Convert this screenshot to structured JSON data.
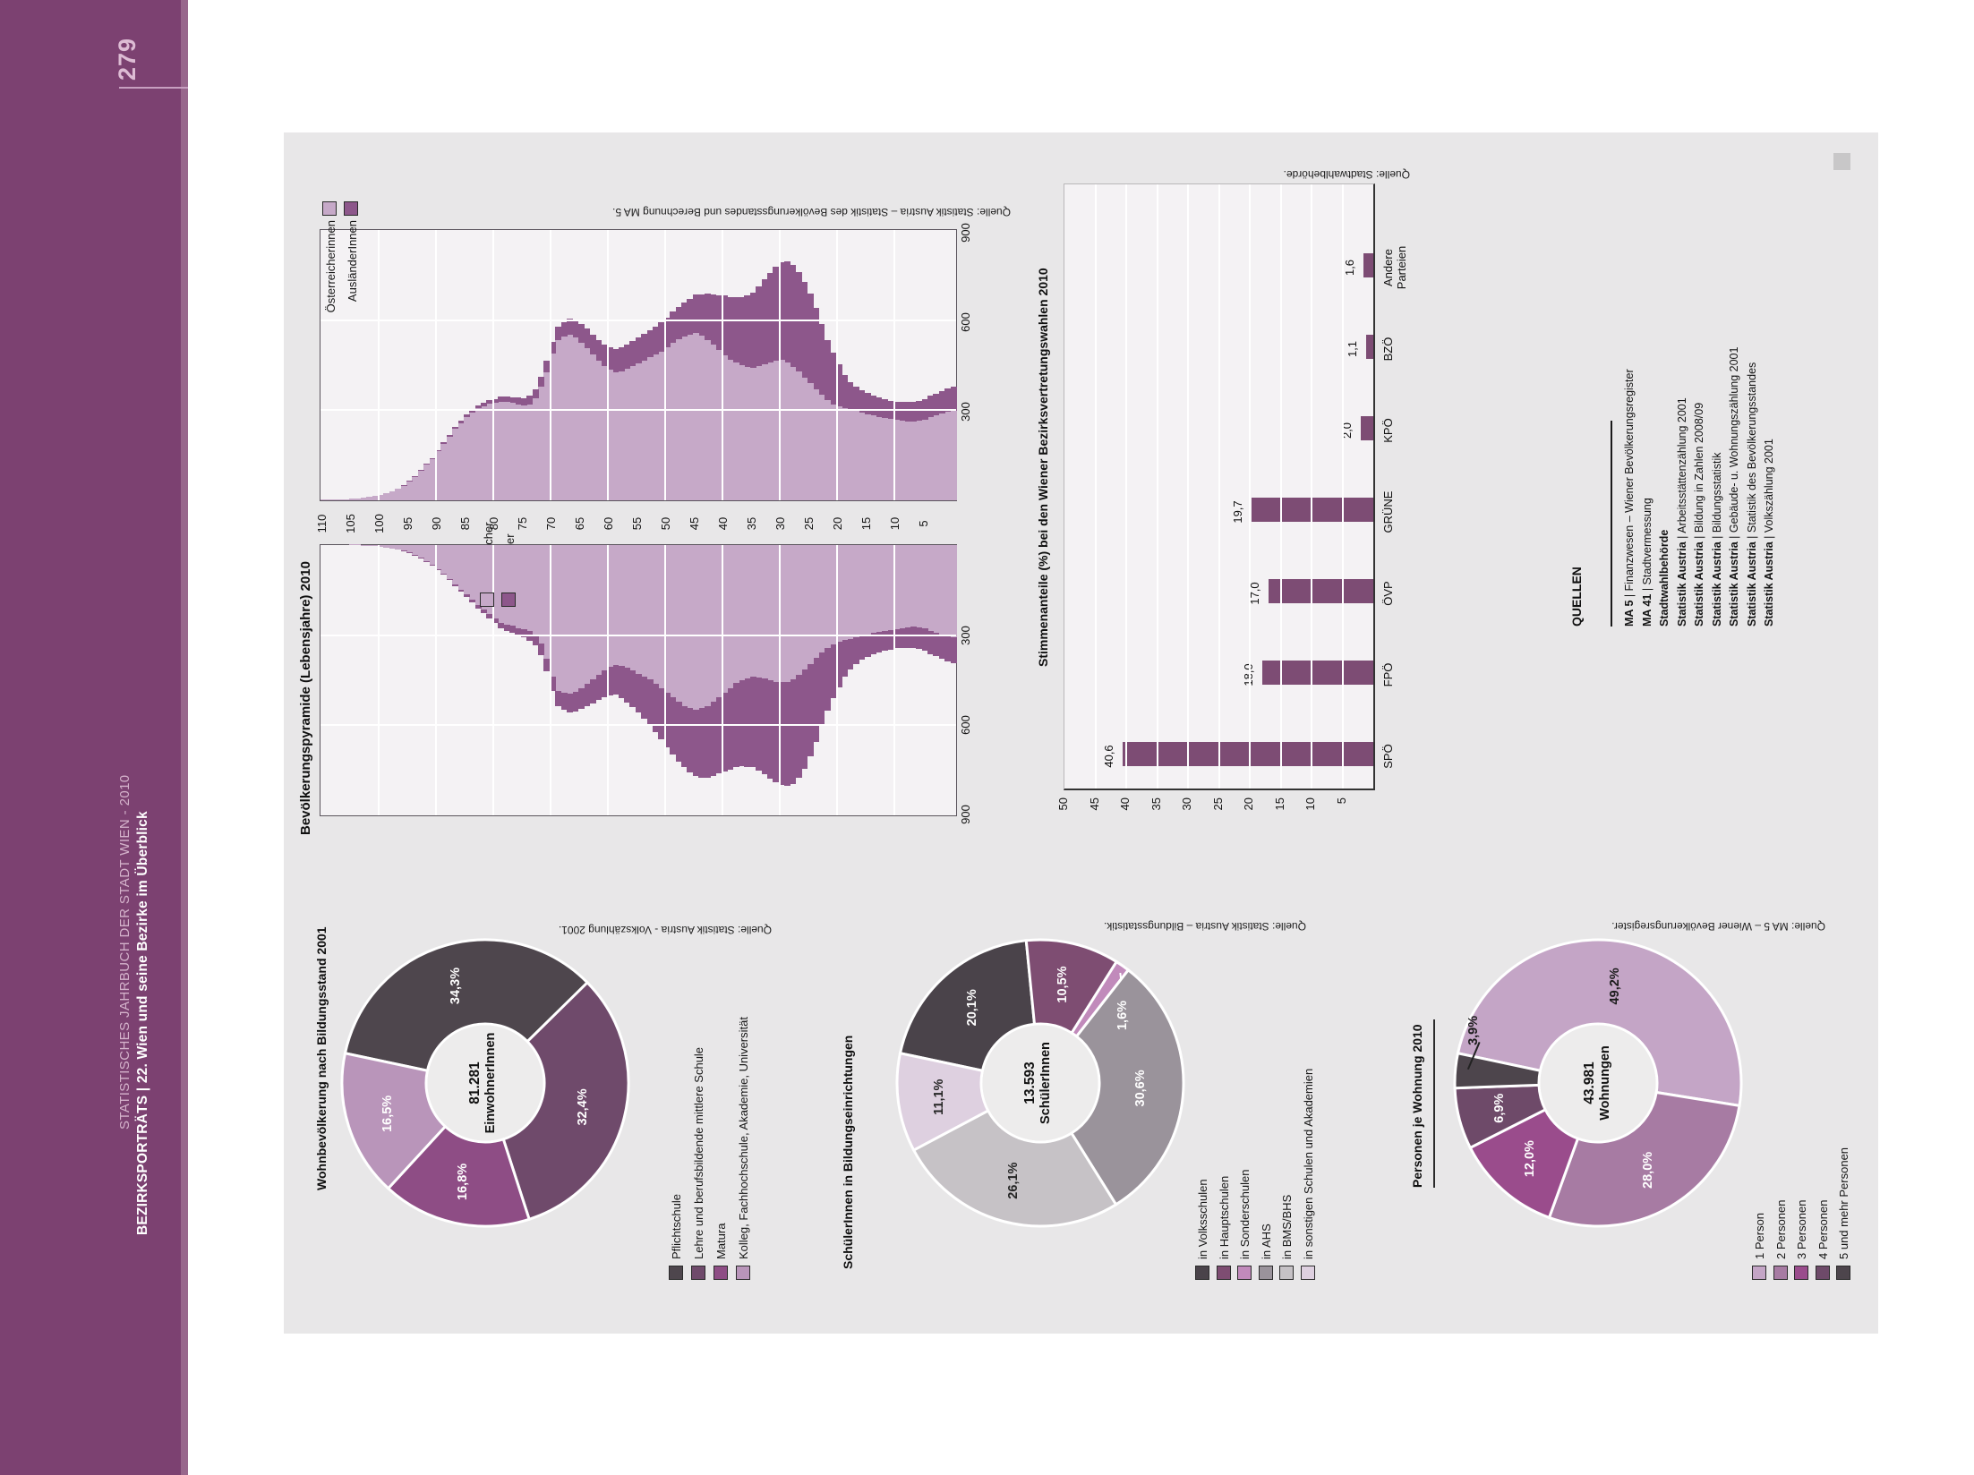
{
  "page": {
    "number": "279",
    "sidebar": {
      "series_title": "STATISTISCHES JAHRBUCH DER STADT WIEN - 2010",
      "chapter_title": "BEZIRKSPORTRÄTS | 22. Wien und seine Bezirke im Überblick",
      "color": "#7c4171"
    },
    "sources_box": {
      "heading": "QUELLEN",
      "items": [
        {
          "bold": "MA 5",
          "rest": " | Finanzwesen – Wiener Bevölkerungsregister"
        },
        {
          "bold": "MA 41",
          "rest": " | Stadtvermessung"
        },
        {
          "bold": "Stadtwahlbehörde",
          "rest": ""
        },
        {
          "bold": "Statistik Austria",
          "rest": " | Arbeitsstättenzählung 2001"
        },
        {
          "bold": "Statistik Austria",
          "rest": " | Bildung in Zahlen 2008/09"
        },
        {
          "bold": "Statistik Austria",
          "rest": " | Bildungsstatistik"
        },
        {
          "bold": "Statistik Austria",
          "rest": " | Gebäude- u. Wohnungszählung 2001"
        },
        {
          "bold": "Statistik Austria",
          "rest": " | Statistik des Bevölkerungsstandes"
        },
        {
          "bold": "Statistik Austria",
          "rest": " | Volkszählung 2001"
        }
      ]
    }
  },
  "chart_data": [
    {
      "type": "bar",
      "subtype": "population-pyramid",
      "title": "Bevölkerungspyramide (Lebensjahre) 2010",
      "source": "Quelle: Statistik Austria – Statistik des Bevölkerungsstandes und Berechnung MA 5.",
      "age_axis": {
        "min": 0,
        "max": 110,
        "tick_step": 5
      },
      "value_axis": {
        "ticks": [
          300,
          600,
          900
        ],
        "max": 906
      },
      "legend_female": [
        "Österreicherinnen",
        "AusländerInnen"
      ],
      "legend_male": [
        "Österreicher",
        "Ausländer"
      ],
      "color_national": "#c6a9c8",
      "color_foreign": "#8d578b",
      "series": [
        {
          "name": "Österreicherinnen",
          "values": [
            300,
            296,
            290,
            284,
            278,
            270,
            266,
            264,
            265,
            268,
            271,
            274,
            277,
            280,
            284,
            289,
            294,
            299,
            304,
            308,
            314,
            322,
            336,
            354,
            372,
            392,
            412,
            432,
            448,
            462,
            470,
            469,
            463,
            456,
            449,
            443,
            446,
            452,
            461,
            471,
            487,
            504,
            521,
            538,
            551,
            561,
            556,
            549,
            539,
            528,
            514,
            499,
            489,
            479,
            469,
            459,
            449,
            440,
            433,
            429,
            438,
            451,
            469,
            489,
            511,
            529,
            546,
            556,
            549,
            538,
            492,
            430,
            381,
            341,
            322,
            317,
            321,
            326,
            331,
            331,
            327,
            323,
            315,
            309,
            294,
            279,
            259,
            239,
            214,
            189,
            164,
            139,
            119,
            99,
            79,
            64,
            49,
            39,
            29,
            24,
            19,
            15,
            12,
            9,
            7,
            5,
            4,
            3,
            2,
            1,
            1
          ]
        },
        {
          "name": "AusländerInnen",
          "values": [
            80,
            78,
            76,
            74,
            72,
            70,
            68,
            66,
            64,
            62,
            60,
            60,
            62,
            64,
            68,
            71,
            75,
            81,
            92,
            112,
            142,
            172,
            202,
            237,
            272,
            301,
            321,
            333,
            341,
            338,
            329,
            314,
            299,
            284,
            269,
            254,
            240,
            229,
            219,
            209,
            199,
            184,
            169,
            154,
            139,
            129,
            119,
            114,
            109,
            104,
            99,
            97,
            94,
            91,
            89,
            87,
            84,
            81,
            79,
            77,
            74,
            71,
            69,
            67,
            64,
            61,
            59,
            54,
            49,
            44,
            39,
            37,
            34,
            31,
            29,
            26,
            23,
            20,
            18,
            16,
            13,
            12,
            11,
            10,
            9,
            8,
            7,
            6,
            5,
            5,
            4,
            3,
            2,
            2,
            1,
            1,
            1,
            0,
            0,
            0,
            0,
            0,
            0,
            0,
            0,
            0,
            0,
            0,
            0,
            0,
            0
          ]
        },
        {
          "name": "Österreicher",
          "values": [
            310,
            306,
            300,
            294,
            288,
            280,
            276,
            274,
            275,
            278,
            281,
            284,
            287,
            290,
            294,
            299,
            304,
            309,
            314,
            318,
            324,
            332,
            344,
            360,
            378,
            398,
            418,
            436,
            450,
            458,
            460,
            458,
            453,
            448,
            443,
            441,
            446,
            453,
            463,
            479,
            494,
            509,
            524,
            539,
            547,
            551,
            546,
            539,
            526,
            511,
            496,
            481,
            466,
            451,
            441,
            431,
            421,
            411,
            405,
            401,
            409,
            419,
            434,
            449,
            464,
            479,
            491,
            499,
            495,
            489,
            441,
            381,
            331,
            301,
            289,
            281,
            278,
            271,
            266,
            261,
            246,
            231,
            216,
            201,
            183,
            166,
            149,
            131,
            113,
            96,
            81,
            66,
            54,
            43,
            34,
            26,
            20,
            15,
            11,
            8,
            6,
            4,
            3,
            2,
            1,
            1,
            0,
            0,
            0,
            0,
            0
          ]
        },
        {
          "name": "Ausländer",
          "values": [
            85,
            83,
            81,
            79,
            77,
            75,
            73,
            71,
            69,
            67,
            65,
            66,
            68,
            70,
            73,
            76,
            81,
            89,
            102,
            124,
            152,
            182,
            212,
            247,
            282,
            311,
            331,
            343,
            351,
            349,
            344,
            337,
            329,
            321,
            313,
            304,
            297,
            289,
            281,
            273,
            265,
            257,
            249,
            241,
            233,
            224,
            216,
            206,
            199,
            191,
            181,
            171,
            161,
            151,
            141,
            131,
            123,
            116,
            109,
            101,
            96,
            91,
            86,
            81,
            76,
            71,
            66,
            61,
            56,
            51,
            47,
            43,
            39,
            36,
            33,
            29,
            26,
            23,
            21,
            18,
            16,
            14,
            12,
            11,
            9,
            8,
            7,
            6,
            5,
            4,
            3,
            3,
            2,
            2,
            1,
            1,
            1,
            0,
            0,
            0,
            0,
            0,
            0,
            0,
            0,
            0,
            0,
            0,
            0,
            0,
            0
          ]
        }
      ]
    },
    {
      "type": "bar",
      "title": "Stimmenanteile (%) bei den Wiener Bezirksvertretungswahlen 2010",
      "source": "Quelle: Stadtwahlbehörde.",
      "categories": [
        "SPÖ",
        "FPÖ",
        "ÖVP",
        "GRÜNE",
        "KPÖ",
        "BZÖ",
        "Andere\nParteien"
      ],
      "values": [
        40.6,
        18.0,
        17.0,
        19.7,
        2.0,
        1.1,
        1.6
      ],
      "value_labels": [
        "40,6",
        "18,0",
        "17,0",
        "19,7",
        "2,0",
        "1,1",
        "1,6"
      ],
      "bar_color": "#7d4c74",
      "ylim": [
        0,
        50
      ],
      "ytick_step": 5
    },
    {
      "type": "donut",
      "title": "Wohnbevölkerung nach Bildungsstand 2001",
      "source": "Quelle: Statistik Austria - Volkszählung 2001.",
      "center_value": "81.281",
      "center_label": "EinwohnerInnen",
      "start_angle": 12,
      "segments": [
        {
          "label": "Pflichtschule",
          "value": 34.3,
          "display": "34,3%",
          "color": "#4e464d",
          "label_color": "#ffffff",
          "label_r": 113
        },
        {
          "label": "Lehre und berufsbildende mittlere Schule",
          "value": 32.4,
          "display": "32,4%",
          "color": "#6f4a6b",
          "label_color": "#ffffff",
          "label_r": 113
        },
        {
          "label": "Matura",
          "value": 16.8,
          "display": "16,8%",
          "color": "#8e4d85",
          "label_color": "#ffffff",
          "label_r": 113
        },
        {
          "label": "Kolleg, Fachhochschule, Akademie, Universität",
          "value": 16.5,
          "display": "16,5%",
          "color": "#b995ba",
          "label_color": "#ffffff",
          "label_r": 113
        }
      ]
    },
    {
      "type": "donut",
      "title": "SchülerInnen in Bildungseinrichtungen",
      "source": "Quelle: Statistik Austria – Bildungsstatistik.",
      "center_value": "13.593",
      "center_label": "SchülerInnen",
      "start_angle": 12,
      "segments": [
        {
          "label": "in Volksschulen",
          "value": 20.1,
          "display": "20,1%",
          "color": "#4a434a",
          "label_color": "#ffffff",
          "label_r": 113
        },
        {
          "label": "in Hauptschulen",
          "value": 10.5,
          "display": "10,5%",
          "color": "#7e4d72",
          "label_color": "#ffffff",
          "label_r": 113
        },
        {
          "label": "in Sonderschulen",
          "value": 1.6,
          "display": "1,6%",
          "color": "#c18abb",
          "label_color": "#ffffff",
          "label_angle": 141,
          "label_r": 120,
          "callout": {
            "from": [
              126,
              152
            ],
            "to": [
              138,
              126
            ],
            "color": "#ffffff"
          }
        },
        {
          "label": "in AHS",
          "value": 30.6,
          "display": "30,6%",
          "color": "#9a939b",
          "label_color": "#ffffff",
          "label_r": 113
        },
        {
          "label": "in BMS/BHS",
          "value": 26.1,
          "display": "26,1%",
          "color": "#c6c2c6",
          "label_color": "#262626",
          "label_r": 113
        },
        {
          "label": "in sonstigen Schulen und Akademien",
          "value": 11.1,
          "display": "11,1%",
          "color": "#ded0e0",
          "label_color": "#262626",
          "label_r": 113
        }
      ]
    },
    {
      "type": "donut",
      "title": "Personen je Wohnung 2010",
      "source": "Quelle: MA 5 – Wiener Bevölkerungsregister.",
      "center_value": "43.981",
      "center_label": "Wohnungen",
      "start_angle": 12,
      "segments": [
        {
          "label": "1 Person",
          "value": 49.2,
          "display": "49,2%",
          "color": "#c4a5c6",
          "label_color": "#1b1b1b",
          "label_r": 110
        },
        {
          "label": "2 Personen",
          "value": 28.0,
          "display": "28,0%",
          "color": "#a77ba3",
          "label_color": "#ffffff",
          "label_r": 113
        },
        {
          "label": "3 Personen",
          "value": 12.0,
          "display": "12,0%",
          "color": "#9a4c8c",
          "label_color": "#ffffff",
          "label_r": 113
        },
        {
          "label": "4 Personen",
          "value": 6.9,
          "display": "6,9%",
          "color": "#6e4a69",
          "label_color": "#ffffff",
          "label_r": 113
        },
        {
          "label": "5 und mehr Personen",
          "value": 3.9,
          "display": "3,9%",
          "color": "#4d454c",
          "label_color": "#1b1b1b",
          "label_angle": 23,
          "label_r": 150,
          "callout": {
            "from": [
              6,
              146
            ],
            "to": [
              19,
              140
            ],
            "color": "#222222"
          }
        }
      ]
    }
  ]
}
